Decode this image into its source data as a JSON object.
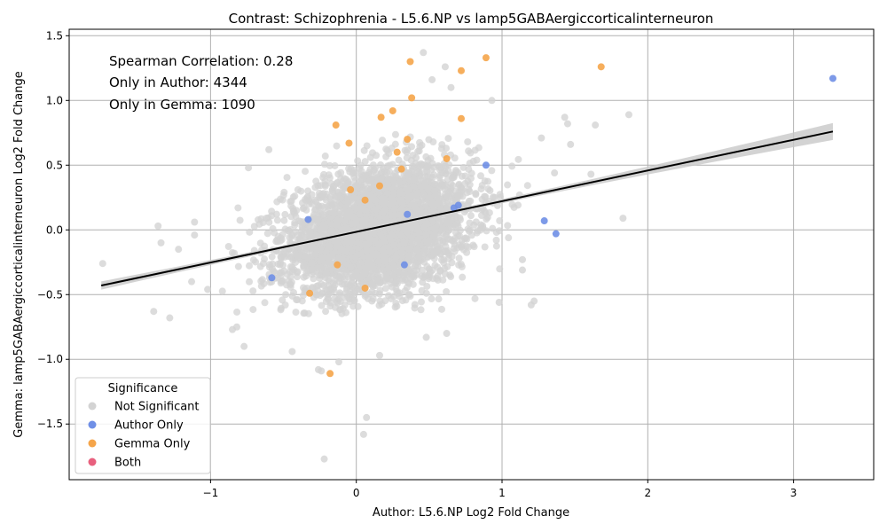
{
  "chart_data": {
    "type": "scatter",
    "title": "Contrast: Schizophrenia - L5.6.NP vs lamp5GABAergiccorticalinterneuron",
    "xlabel": "Author: L5.6.NP Log2 Fold Change",
    "ylabel": "Gemma: lamp5GABAergiccorticalinterneuron Log2 Fold Change",
    "xlim": [
      -1.97,
      3.55
    ],
    "ylim": [
      -1.93,
      1.55
    ],
    "x_ticks": [
      -1,
      0,
      1,
      2,
      3
    ],
    "x_tick_labels": [
      "−1",
      "0",
      "1",
      "2",
      "3"
    ],
    "y_ticks": [
      -1.5,
      -1.0,
      -0.5,
      0.0,
      0.5,
      1.0,
      1.5
    ],
    "y_tick_labels": [
      "−1.5",
      "−1.0",
      "−0.5",
      "0.0",
      "0.5",
      "1.0",
      "1.5"
    ],
    "grid": true,
    "annotations": [
      "Spearman Correlation: 0.28",
      "Only in Author: 4344",
      "Only in Gemma: 1090"
    ],
    "legend": {
      "title": "Significance",
      "placement": "lower-left",
      "entries": [
        {
          "name": "Not Significant",
          "color": "#d3d3d3"
        },
        {
          "name": "Author Only",
          "color": "#6f8fe6"
        },
        {
          "name": "Gemma Only",
          "color": "#f5a54a"
        },
        {
          "name": "Both",
          "color": "#e8607e"
        }
      ]
    },
    "regression_line": {
      "x": [
        -1.75,
        3.27
      ],
      "y": [
        -0.43,
        0.76
      ],
      "color": "#000000"
    },
    "series": [
      {
        "name": "Author Only",
        "color": "#6f8fe6",
        "points": [
          [
            3.27,
            1.17
          ],
          [
            0.89,
            0.5
          ],
          [
            1.29,
            0.07
          ],
          [
            1.37,
            -0.03
          ],
          [
            0.7,
            0.19
          ],
          [
            0.67,
            0.17
          ],
          [
            -0.58,
            -0.37
          ],
          [
            0.33,
            -0.27
          ],
          [
            -0.33,
            0.08
          ],
          [
            0.35,
            0.12
          ]
        ]
      },
      {
        "name": "Gemma Only",
        "color": "#f5a54a",
        "points": [
          [
            0.89,
            1.33
          ],
          [
            0.37,
            1.3
          ],
          [
            0.72,
            1.23
          ],
          [
            1.68,
            1.26
          ],
          [
            0.38,
            1.02
          ],
          [
            0.25,
            0.92
          ],
          [
            0.17,
            0.87
          ],
          [
            0.72,
            0.86
          ],
          [
            -0.14,
            0.81
          ],
          [
            0.35,
            0.7
          ],
          [
            -0.05,
            0.67
          ],
          [
            0.28,
            0.6
          ],
          [
            0.62,
            0.55
          ],
          [
            0.31,
            0.47
          ],
          [
            -0.18,
            -1.11
          ],
          [
            -0.32,
            -0.49
          ],
          [
            0.06,
            -0.45
          ],
          [
            0.16,
            0.34
          ],
          [
            -0.04,
            0.31
          ],
          [
            0.06,
            0.23
          ],
          [
            -0.13,
            -0.27
          ]
        ]
      },
      {
        "name": "Both",
        "color": "#e8607e",
        "points": []
      },
      {
        "name": "Not Significant",
        "color": "#d3d3d3",
        "outliers": [
          [
            -1.74,
            -0.26
          ],
          [
            -1.39,
            -0.63
          ],
          [
            -1.36,
            0.03
          ],
          [
            -1.34,
            -0.1
          ],
          [
            -1.28,
            -0.68
          ],
          [
            -1.22,
            -0.15
          ],
          [
            -1.13,
            -0.4
          ],
          [
            -1.11,
            0.06
          ],
          [
            -1.11,
            -0.04
          ],
          [
            -0.85,
            -0.77
          ],
          [
            -0.82,
            -0.75
          ],
          [
            -0.26,
            -1.08
          ],
          [
            -0.24,
            -1.09
          ],
          [
            -0.22,
            -1.77
          ],
          [
            0.05,
            -1.58
          ],
          [
            0.07,
            -1.45
          ],
          [
            -0.12,
            -1.02
          ],
          [
            0.16,
            -0.97
          ],
          [
            -0.44,
            -0.94
          ],
          [
            1.83,
            0.09
          ],
          [
            1.87,
            0.89
          ],
          [
            1.64,
            0.81
          ],
          [
            1.61,
            0.43
          ],
          [
            1.47,
            0.66
          ],
          [
            1.45,
            0.82
          ],
          [
            1.43,
            0.87
          ],
          [
            1.36,
            0.44
          ],
          [
            1.27,
            0.71
          ],
          [
            1.22,
            -0.55
          ],
          [
            1.2,
            -0.58
          ],
          [
            1.14,
            -0.23
          ],
          [
            1.14,
            -0.31
          ],
          [
            0.98,
            -0.56
          ],
          [
            0.48,
            -0.83
          ],
          [
            0.62,
            -0.8
          ],
          [
            0.46,
            1.37
          ],
          [
            0.61,
            1.26
          ],
          [
            0.52,
            1.16
          ],
          [
            0.65,
            1.1
          ],
          [
            0.93,
            1.0
          ],
          [
            -0.77,
            -0.9
          ],
          [
            -1.02,
            -0.46
          ],
          [
            -0.74,
            0.48
          ],
          [
            -0.6,
            0.62
          ]
        ],
        "cloud": {
          "count": 3600,
          "center_x": 0.15,
          "center_y": 0.0,
          "sd_x": 0.32,
          "sd_y": 0.25,
          "correlation": 0.3,
          "x_range": [
            -1.0,
            1.3
          ],
          "y_range": [
            -0.65,
            0.75
          ]
        }
      }
    ]
  }
}
